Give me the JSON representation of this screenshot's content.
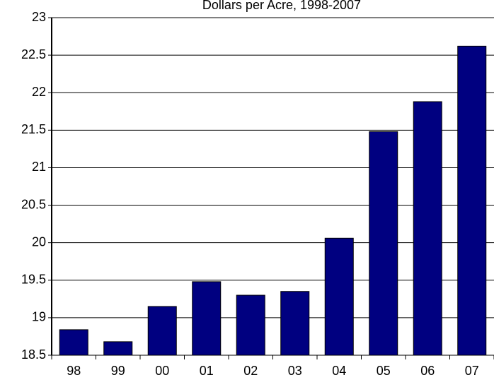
{
  "chart_data": {
    "type": "bar",
    "title": "Dollars per Acre, 1998-2007",
    "categories": [
      "98",
      "99",
      "00",
      "01",
      "02",
      "03",
      "04",
      "05",
      "06",
      "07"
    ],
    "values": [
      18.84,
      18.68,
      19.15,
      19.48,
      19.3,
      19.35,
      20.06,
      21.48,
      21.88,
      22.62
    ],
    "color": "#000080",
    "ylim": [
      18.5,
      23
    ],
    "yticks": [
      18.5,
      19,
      19.5,
      20,
      20.5,
      21,
      21.5,
      22,
      22.5,
      23
    ],
    "grid": true
  }
}
